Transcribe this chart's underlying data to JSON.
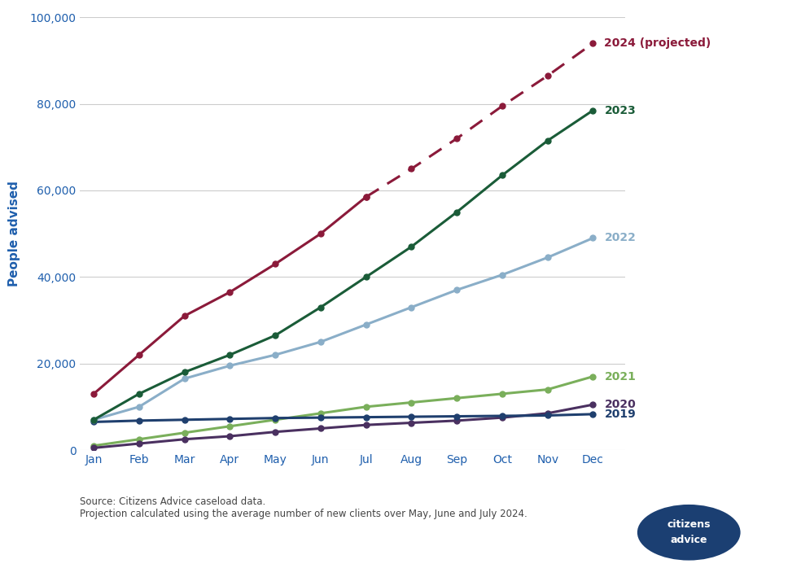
{
  "months": [
    "Jan",
    "Feb",
    "Mar",
    "Apr",
    "May",
    "Jun",
    "Jul",
    "Aug",
    "Sep",
    "Oct",
    "Nov",
    "Dec"
  ],
  "series": {
    "2024_solid": {
      "values": [
        13000,
        22000,
        31000,
        36500,
        43000,
        50000,
        58500,
        null,
        null,
        null,
        null,
        null
      ],
      "color": "#8B1A3A",
      "linestyle": "solid",
      "marker": "o",
      "linewidth": 2.2,
      "zorder": 5
    },
    "2024_dashed": {
      "values": [
        null,
        null,
        null,
        null,
        null,
        null,
        58500,
        65000,
        72000,
        79500,
        86500,
        94000
      ],
      "color": "#8B1A3A",
      "linestyle": "dashed",
      "marker": "o",
      "label": "2024 (projected)",
      "linewidth": 2.2,
      "zorder": 5
    },
    "2023": {
      "values": [
        7000,
        13000,
        18000,
        22000,
        26500,
        33000,
        40000,
        47000,
        55000,
        63500,
        71500,
        78500
      ],
      "color": "#1A5C38",
      "linestyle": "solid",
      "marker": "o",
      "label": "2023",
      "linewidth": 2.2,
      "zorder": 4
    },
    "2022": {
      "values": [
        7000,
        10000,
        16500,
        19500,
        22000,
        25000,
        29000,
        33000,
        37000,
        40500,
        44500,
        49000
      ],
      "color": "#8AAEC8",
      "linestyle": "solid",
      "marker": "o",
      "label": "2022",
      "linewidth": 2.2,
      "zorder": 3
    },
    "2021": {
      "values": [
        1000,
        2500,
        4000,
        5500,
        7000,
        8500,
        10000,
        11000,
        12000,
        13000,
        14000,
        17000
      ],
      "color": "#7AAF5B",
      "linestyle": "solid",
      "marker": "o",
      "label": "2021",
      "linewidth": 2.2,
      "zorder": 2
    },
    "2020": {
      "values": [
        500,
        1500,
        2500,
        3200,
        4200,
        5000,
        5800,
        6300,
        6800,
        7500,
        8500,
        10500
      ],
      "color": "#4A3060",
      "linestyle": "solid",
      "marker": "o",
      "label": "2020",
      "linewidth": 2.2,
      "zorder": 2
    },
    "2019": {
      "values": [
        6500,
        6800,
        7000,
        7200,
        7400,
        7500,
        7600,
        7700,
        7800,
        7900,
        8000,
        8300
      ],
      "color": "#1F3F6E",
      "linestyle": "solid",
      "marker": "o",
      "label": "2019",
      "linewidth": 2.2,
      "zorder": 2
    }
  },
  "ylabel": "People advised",
  "ylim": [
    0,
    100000
  ],
  "yticks": [
    0,
    20000,
    40000,
    60000,
    80000,
    100000
  ],
  "background_color": "#ffffff",
  "grid_color": "#cccccc",
  "source_text": "Source: Citizens Advice caseload data.\nProjection calculated using the average number of new clients over May, June and July 2024.",
  "label_fontsize": 10,
  "axis_label_color": "#1F5FAD",
  "tick_color": "#1F5FAD",
  "label_colors": {
    "2024 (projected)": "#8B1A3A",
    "2023": "#1A5C38",
    "2022": "#8AAEC8",
    "2021": "#7AAF5B",
    "2020": "#4A3060",
    "2019": "#1F3F6E"
  }
}
